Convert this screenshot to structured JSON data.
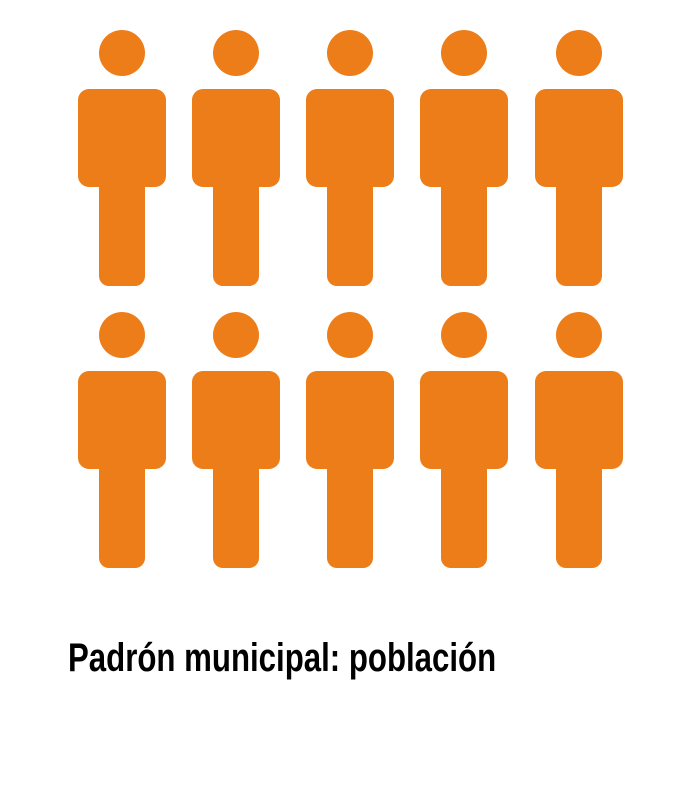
{
  "caption": "Padrón municipal: población",
  "figures": {
    "count": 10,
    "icon": "person-icon",
    "color": "#ED7D19"
  }
}
